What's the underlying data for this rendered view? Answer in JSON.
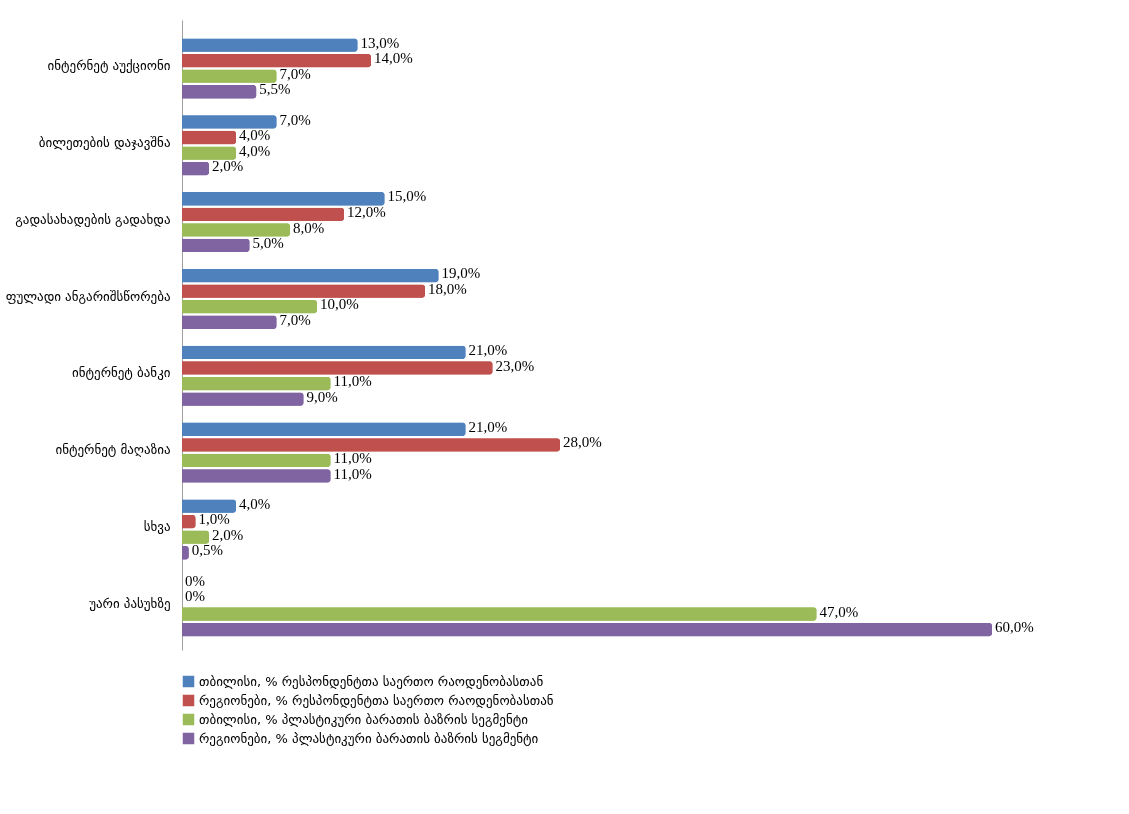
{
  "chart_data": {
    "type": "bar",
    "orientation": "horizontal",
    "legend": "bottom",
    "categories": [
      "ინტერნეტ აუქციონი",
      "ბილეთების დაჯავშნა",
      "გადასახადების გადახდა",
      "ფულადი ანგარიშსწორება",
      "ინტერნეტ ბანკი",
      "ინტერნეტ მაღაზია",
      "სხვა",
      "უარი პასუხზე"
    ],
    "series": [
      {
        "name": "თბილისი, % რესპონდენტთა საერთო რაოდენობასთან",
        "color": "#4f81bd",
        "values": [
          13,
          7,
          15,
          19,
          21,
          21,
          4,
          0
        ],
        "value_labels": [
          "13,0%",
          "7,0%",
          "15,0%",
          "19,0%",
          "21,0%",
          "21,0%",
          "4,0%",
          "0%"
        ]
      },
      {
        "name": "რეგიონები, % რესპონდენტთა საერთო რაოდენობასთან",
        "color": "#c0504d",
        "values": [
          14,
          4,
          12,
          18,
          23,
          28,
          1,
          0
        ],
        "value_labels": [
          "14,0%",
          "4,0%",
          "12,0%",
          "18,0%",
          "23,0%",
          "28,0%",
          "1,0%",
          "0%"
        ]
      },
      {
        "name": "თბილისი, % პლასტიკური ბარათის ბაზრის სეგმენტი",
        "color": "#9bbb59",
        "values": [
          7,
          4,
          8,
          10,
          11,
          11,
          2,
          47
        ],
        "value_labels": [
          "7,0%",
          "4,0%",
          "8,0%",
          "10,0%",
          "11,0%",
          "11,0%",
          "2,0%",
          "47,0%"
        ]
      },
      {
        "name": "რეგიონები, % პლასტიკური ბარათის ბაზრის სეგმენტი",
        "color": "#8064a2",
        "values": [
          5.5,
          2,
          5,
          7,
          9,
          11,
          0.5,
          60
        ],
        "value_labels": [
          "5,5%",
          "2,0%",
          "5,0%",
          "7,0%",
          "9,0%",
          "11,0%",
          "0,5%",
          "60,0%"
        ]
      }
    ]
  }
}
